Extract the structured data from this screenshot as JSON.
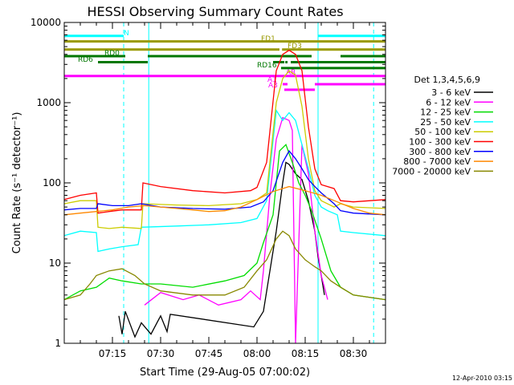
{
  "chart_data": {
    "type": "line",
    "title": "HESSI Observing Summary Count Rates",
    "xlabel": "Start Time (29-Aug-05 07:00:02)",
    "ylabel": "Count Rate (s⁻¹ detector⁻¹)",
    "x_range_minutes": [
      0,
      100
    ],
    "y_range": [
      1,
      10000
    ],
    "y_scale": "log",
    "x_ticks": [
      {
        "minute": 15,
        "label": "07:15"
      },
      {
        "minute": 30,
        "label": "07:30"
      },
      {
        "minute": 45,
        "label": "07:45"
      },
      {
        "minute": 60,
        "label": "08:00"
      },
      {
        "minute": 75,
        "label": "08:15"
      },
      {
        "minute": 90,
        "label": "08:30"
      }
    ],
    "y_ticks": [
      {
        "value": 1,
        "label": "1"
      },
      {
        "value": 10,
        "label": "10"
      },
      {
        "value": 100,
        "label": "100"
      },
      {
        "value": 1000,
        "label": "1000"
      },
      {
        "value": 10000,
        "label": "10000"
      }
    ],
    "legend": {
      "placement": "right",
      "title": "Det 1,3,4,5,6,9",
      "entries": [
        {
          "label": "3 - 6 keV",
          "color": "#000000"
        },
        {
          "label": "6 - 12 keV",
          "color": "#ff00ff"
        },
        {
          "label": "12 - 25 keV",
          "color": "#00dd00"
        },
        {
          "label": "25 - 50 keV",
          "color": "#00ffff"
        },
        {
          "label": "50 - 100 keV",
          "color": "#cccc00"
        },
        {
          "label": "100 - 300 keV",
          "color": "#ff0000"
        },
        {
          "label": "300 - 800 keV",
          "color": "#0000ff"
        },
        {
          "label": "800 - 7000 keV",
          "color": "#ff8800"
        },
        {
          "label": "7000 - 20000 keV",
          "color": "#888800"
        }
      ]
    },
    "series": [
      {
        "name": "3 - 6 keV",
        "color": "#000000",
        "points": [
          [
            17,
            2.2
          ],
          [
            18,
            1.3
          ],
          [
            19,
            2.5
          ],
          [
            22,
            1.2
          ],
          [
            24,
            1.8
          ],
          [
            27,
            1.3
          ],
          [
            30,
            2.2
          ],
          [
            32,
            1.4
          ],
          [
            33,
            2.3
          ],
          [
            59,
            1.6
          ],
          [
            62,
            2.5
          ],
          [
            66,
            25
          ],
          [
            68,
            100
          ],
          [
            69,
            180
          ],
          [
            70,
            170
          ],
          [
            72,
            130
          ],
          [
            74,
            110
          ],
          [
            76,
            60
          ],
          [
            78,
            25
          ],
          [
            79,
            12
          ],
          [
            80,
            7
          ],
          [
            81,
            4
          ]
        ]
      },
      {
        "name": "6 - 12 keV",
        "color": "#ff00ff",
        "points": [
          [
            25,
            3
          ],
          [
            30,
            4.3
          ],
          [
            37,
            3.5
          ],
          [
            42,
            4
          ],
          [
            48,
            3
          ],
          [
            55,
            3.5
          ],
          [
            58,
            4.5
          ],
          [
            61,
            3.5
          ],
          [
            62,
            8
          ],
          [
            64,
            70
          ],
          [
            66,
            350
          ],
          [
            68,
            650
          ],
          [
            70,
            600
          ],
          [
            71,
            450
          ],
          [
            72,
            1
          ],
          [
            74,
            300
          ],
          [
            76,
            130
          ],
          [
            78,
            25
          ],
          [
            80,
            7
          ],
          [
            82,
            3.5
          ]
        ]
      },
      {
        "name": "12 - 25 keV",
        "color": "#00dd00",
        "points": [
          [
            0,
            3.5
          ],
          [
            5,
            4.5
          ],
          [
            10,
            5
          ],
          [
            14,
            6.5
          ],
          [
            18,
            6
          ],
          [
            24,
            5.5
          ],
          [
            30,
            5.5
          ],
          [
            40,
            5
          ],
          [
            50,
            6
          ],
          [
            56,
            7
          ],
          [
            60,
            10
          ],
          [
            62,
            18
          ],
          [
            65,
            40
          ],
          [
            67,
            250
          ],
          [
            69,
            300
          ],
          [
            71,
            180
          ],
          [
            73,
            100
          ],
          [
            75,
            70
          ],
          [
            77,
            45
          ],
          [
            80,
            20
          ],
          [
            83,
            8
          ],
          [
            86,
            5
          ],
          [
            90,
            4
          ],
          [
            100,
            3.5
          ]
        ]
      },
      {
        "name": "25 - 50 keV",
        "color": "#00ffff",
        "points": [
          [
            0,
            22
          ],
          [
            5,
            25
          ],
          [
            10,
            24
          ],
          [
            10.5,
            14
          ],
          [
            14,
            15
          ],
          [
            18,
            16
          ],
          [
            23,
            17
          ],
          [
            24,
            28
          ],
          [
            35,
            29
          ],
          [
            45,
            30
          ],
          [
            55,
            32
          ],
          [
            60,
            36
          ],
          [
            63,
            60
          ],
          [
            66,
            800
          ],
          [
            68,
            600
          ],
          [
            70,
            750
          ],
          [
            72,
            600
          ],
          [
            74,
            300
          ],
          [
            76,
            150
          ],
          [
            78,
            70
          ],
          [
            80,
            50
          ],
          [
            82,
            45
          ],
          [
            85,
            40
          ],
          [
            86,
            25
          ],
          [
            90,
            24
          ],
          [
            100,
            22
          ]
        ]
      },
      {
        "name": "50 - 100 keV",
        "color": "#cccc00",
        "points": [
          [
            0,
            55
          ],
          [
            5,
            60
          ],
          [
            10,
            60
          ],
          [
            10.5,
            28
          ],
          [
            14,
            27
          ],
          [
            18,
            28
          ],
          [
            24,
            27
          ],
          [
            24.5,
            55
          ],
          [
            35,
            53
          ],
          [
            45,
            52
          ],
          [
            55,
            55
          ],
          [
            60,
            62
          ],
          [
            63,
            75
          ],
          [
            66,
            1000
          ],
          [
            68,
            2000
          ],
          [
            70,
            2500
          ],
          [
            72,
            2200
          ],
          [
            74,
            900
          ],
          [
            76,
            200
          ],
          [
            78,
            80
          ],
          [
            80,
            60
          ],
          [
            84,
            50
          ],
          [
            86,
            55
          ],
          [
            90,
            50
          ],
          [
            100,
            48
          ]
        ]
      },
      {
        "name": "100 - 300 keV",
        "color": "#ff0000",
        "points": [
          [
            0,
            62
          ],
          [
            5,
            70
          ],
          [
            10,
            75
          ],
          [
            10.5,
            42
          ],
          [
            14,
            44
          ],
          [
            18,
            46
          ],
          [
            24,
            46
          ],
          [
            24.5,
            100
          ],
          [
            30,
            90
          ],
          [
            40,
            80
          ],
          [
            50,
            75
          ],
          [
            58,
            80
          ],
          [
            60,
            88
          ],
          [
            63,
            180
          ],
          [
            66,
            2500
          ],
          [
            68,
            4000
          ],
          [
            70,
            4500
          ],
          [
            72,
            4000
          ],
          [
            74,
            2500
          ],
          [
            76,
            500
          ],
          [
            78,
            150
          ],
          [
            80,
            95
          ],
          [
            84,
            85
          ],
          [
            86,
            60
          ],
          [
            90,
            58
          ],
          [
            100,
            62
          ]
        ]
      },
      {
        "name": "300 - 800 keV",
        "color": "#0000ff",
        "points": [
          [
            0,
            46
          ],
          [
            5,
            48
          ],
          [
            10,
            48
          ],
          [
            10.5,
            55
          ],
          [
            15,
            52
          ],
          [
            20,
            52
          ],
          [
            24,
            55
          ],
          [
            30,
            50
          ],
          [
            40,
            48
          ],
          [
            50,
            47
          ],
          [
            58,
            50
          ],
          [
            62,
            58
          ],
          [
            65,
            80
          ],
          [
            68,
            180
          ],
          [
            70,
            250
          ],
          [
            72,
            200
          ],
          [
            74,
            150
          ],
          [
            76,
            110
          ],
          [
            78,
            90
          ],
          [
            80,
            75
          ],
          [
            84,
            55
          ],
          [
            86,
            45
          ],
          [
            90,
            42
          ],
          [
            100,
            40
          ]
        ]
      },
      {
        "name": "800 - 7000 keV",
        "color": "#ff8800",
        "points": [
          [
            0,
            40
          ],
          [
            5,
            42
          ],
          [
            10,
            44
          ],
          [
            15,
            46
          ],
          [
            20,
            50
          ],
          [
            25,
            52
          ],
          [
            30,
            50
          ],
          [
            35,
            48
          ],
          [
            40,
            46
          ],
          [
            45,
            44
          ],
          [
            50,
            45
          ],
          [
            55,
            50
          ],
          [
            60,
            62
          ],
          [
            65,
            78
          ],
          [
            70,
            90
          ],
          [
            75,
            80
          ],
          [
            80,
            70
          ],
          [
            85,
            58
          ],
          [
            90,
            48
          ],
          [
            95,
            42
          ],
          [
            100,
            40
          ]
        ]
      },
      {
        "name": "7000 - 20000 keV",
        "color": "#888800",
        "points": [
          [
            0,
            3.5
          ],
          [
            5,
            4
          ],
          [
            8,
            5.5
          ],
          [
            10,
            7
          ],
          [
            14,
            8
          ],
          [
            18,
            8.5
          ],
          [
            22,
            7
          ],
          [
            25,
            5.5
          ],
          [
            30,
            4.5
          ],
          [
            40,
            4
          ],
          [
            50,
            4
          ],
          [
            56,
            5
          ],
          [
            60,
            8
          ],
          [
            63,
            11
          ],
          [
            66,
            20
          ],
          [
            68,
            25
          ],
          [
            70,
            22
          ],
          [
            72,
            15
          ],
          [
            75,
            11
          ],
          [
            78,
            9
          ],
          [
            80,
            8
          ],
          [
            83,
            6
          ],
          [
            86,
            5
          ],
          [
            90,
            4
          ],
          [
            100,
            3.5
          ]
        ]
      }
    ],
    "flag_bars": [
      {
        "label": "N",
        "color": "#00ffff",
        "y": 6800,
        "segments": [
          [
            0,
            18.5
          ],
          [
            79,
            100
          ]
        ]
      },
      {
        "label": "FD1",
        "color": "#999900",
        "y": 5800,
        "segments": [
          [
            0,
            100
          ]
        ]
      },
      {
        "label": "FD3",
        "color": "#999900",
        "y": 4600,
        "segments": [
          [
            0,
            67
          ],
          [
            67.8,
            100
          ]
        ]
      },
      {
        "label": "RD0",
        "color": "#007700",
        "y": 3800,
        "segments": [
          [
            0,
            19
          ],
          [
            26,
            77
          ],
          [
            86,
            100
          ]
        ]
      },
      {
        "label": "RD6",
        "color": "#007700",
        "y": 3200,
        "segments": [
          [
            10.5,
            26
          ],
          [
            65,
            68.5
          ],
          [
            68.8,
            69.5
          ],
          [
            70.5,
            100
          ]
        ]
      },
      {
        "label": "RD16",
        "color": "#007700",
        "y": 2700,
        "segments": [
          [
            67.5,
            100
          ]
        ]
      },
      {
        "label": "AR",
        "color": "#ff00ff",
        "y": 2150,
        "segments": [
          [
            0,
            100
          ]
        ]
      },
      {
        "label": "A1",
        "color": "#ff00ff",
        "y": 1700,
        "segments": [
          [
            68,
            69.5
          ],
          [
            78,
            100
          ]
        ]
      },
      {
        "label": "A3",
        "color": "#ff00ff",
        "y": 1450,
        "segments": [
          [
            68.5,
            78
          ]
        ]
      }
    ],
    "vertical_markers": [
      {
        "minute": 0,
        "style": "solid",
        "color": "#00ffff"
      },
      {
        "minute": 18.5,
        "style": "dashed",
        "color": "#00ffff"
      },
      {
        "minute": 26.3,
        "style": "solid",
        "color": "#00ffff"
      },
      {
        "minute": 79,
        "style": "solid",
        "color": "#00ffff"
      },
      {
        "minute": 96.3,
        "style": "dashed",
        "color": "#00ffff"
      }
    ],
    "grid": false
  },
  "footer": {
    "date_stamp": "12-Apr-2010 03:15"
  }
}
